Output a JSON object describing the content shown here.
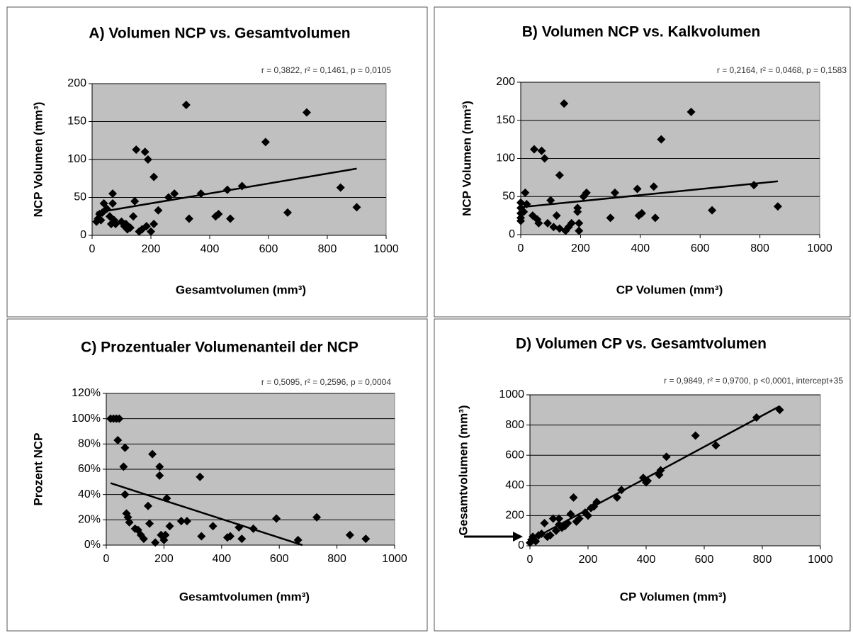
{
  "chart_data": [
    {
      "type": "scatter",
      "title": "A) Volumen NCP vs. Gesamtvolumen",
      "annotation": "r = 0,3822, r² = 0,1461, p = 0,0105",
      "xlabel": "Gesamtvolumen (mm³)",
      "ylabel": "NCP Volumen (mm³)",
      "color": "#000000",
      "grid": true,
      "xlim": [
        0,
        1000
      ],
      "ylim": [
        0,
        200
      ],
      "xticks": [
        0,
        200,
        400,
        600,
        800,
        1000
      ],
      "yticks": [
        0,
        50,
        100,
        150,
        200
      ],
      "x": [
        15,
        20,
        25,
        30,
        35,
        40,
        50,
        60,
        65,
        70,
        70,
        75,
        80,
        100,
        110,
        115,
        120,
        130,
        140,
        145,
        150,
        160,
        170,
        180,
        185,
        190,
        200,
        210,
        210,
        225,
        260,
        280,
        320,
        330,
        370,
        420,
        430,
        460,
        470,
        510,
        590,
        665,
        730,
        845,
        900
      ],
      "y": [
        18,
        22,
        28,
        20,
        30,
        42,
        35,
        25,
        15,
        42,
        55,
        20,
        15,
        18,
        12,
        15,
        8,
        10,
        25,
        45,
        113,
        5,
        8,
        110,
        12,
        100,
        5,
        15,
        77,
        33,
        50,
        55,
        172,
        22,
        55,
        25,
        28,
        60,
        22,
        65,
        123,
        30,
        162,
        63,
        37
      ],
      "trendline": {
        "x": [
          15,
          900
        ],
        "y": [
          30,
          88
        ]
      }
    },
    {
      "type": "scatter",
      "title": "B) Volumen NCP vs. Kalkvolumen",
      "annotation": "r = 0,2164, r² = 0,0468, p = 0,1583",
      "xlabel": "CP Volumen (mm³)",
      "ylabel": "NCP Volumen (mm³)",
      "color": "#000000",
      "grid": true,
      "xlim": [
        0,
        1000
      ],
      "ylim": [
        0,
        200
      ],
      "xticks": [
        0,
        200,
        400,
        600,
        800,
        1000
      ],
      "yticks": [
        0,
        50,
        100,
        150,
        200
      ],
      "x": [
        0,
        0,
        0,
        0,
        0,
        10,
        15,
        20,
        40,
        45,
        55,
        60,
        70,
        80,
        90,
        100,
        110,
        120,
        130,
        130,
        145,
        150,
        160,
        170,
        190,
        190,
        195,
        195,
        210,
        220,
        300,
        315,
        390,
        395,
        405,
        445,
        450,
        470,
        570,
        640,
        780,
        860
      ],
      "y": [
        18,
        22,
        28,
        35,
        42,
        30,
        55,
        40,
        25,
        112,
        20,
        15,
        110,
        100,
        15,
        45,
        10,
        25,
        8,
        78,
        172,
        5,
        10,
        15,
        35,
        30,
        15,
        5,
        50,
        55,
        22,
        55,
        60,
        25,
        28,
        63,
        22,
        125,
        161,
        32,
        65,
        37
      ],
      "trendline": {
        "x": [
          0,
          860
        ],
        "y": [
          36,
          70
        ]
      }
    },
    {
      "type": "scatter",
      "title": "C) Prozentualer Volumenanteil der NCP",
      "annotation": "r = 0,5095, r² = 0,2596, p = 0,0004",
      "xlabel": "Gesamtvolumen (mm³)",
      "ylabel": "Prozent NCP",
      "color": "#000000",
      "grid": true,
      "xlim": [
        0,
        1000
      ],
      "ylim": [
        0,
        120
      ],
      "xticks": [
        0,
        200,
        400,
        600,
        800,
        1000
      ],
      "yticks": [
        {
          "value": 0,
          "label": "0%"
        },
        {
          "value": 20,
          "label": "20%"
        },
        {
          "value": 40,
          "label": "40%"
        },
        {
          "value": 60,
          "label": "60%"
        },
        {
          "value": 80,
          "label": "80%"
        },
        {
          "value": 100,
          "label": "100%"
        },
        {
          "value": 120,
          "label": "120%"
        }
      ],
      "x": [
        15,
        25,
        35,
        40,
        45,
        60,
        65,
        65,
        70,
        75,
        80,
        100,
        110,
        120,
        130,
        145,
        150,
        160,
        170,
        185,
        185,
        190,
        200,
        205,
        210,
        220,
        260,
        280,
        325,
        330,
        370,
        420,
        430,
        460,
        470,
        510,
        590,
        665,
        730,
        845,
        900
      ],
      "y": [
        100,
        100,
        100,
        83,
        100,
        62,
        77,
        40,
        25,
        22,
        18,
        13,
        12,
        8,
        5,
        31,
        17,
        72,
        2,
        62,
        55,
        8,
        4,
        8,
        37,
        15,
        19,
        19,
        54,
        7,
        15,
        6,
        7,
        14,
        5,
        13,
        21,
        4,
        22,
        8,
        5
      ],
      "trendline": {
        "x": [
          15,
          680
        ],
        "y": [
          49,
          0
        ]
      }
    },
    {
      "type": "scatter",
      "title": "D) Volumen CP vs. Gesamtvolumen",
      "annotation": "r = 0,9849,  r² = 0,9700, p <0,0001, intercept+35",
      "xlabel": "CP Volumen (mm³)",
      "ylabel": "Gesamtvolumen (mm³)",
      "color": "#000000",
      "grid": true,
      "xlim": [
        0,
        1000
      ],
      "ylim": [
        0,
        1000
      ],
      "xticks": [
        0,
        200,
        400,
        600,
        800,
        1000
      ],
      "yticks": [
        0,
        200,
        400,
        600,
        800,
        1000
      ],
      "x": [
        0,
        5,
        10,
        20,
        30,
        40,
        50,
        60,
        70,
        80,
        90,
        100,
        100,
        110,
        120,
        130,
        140,
        150,
        160,
        170,
        190,
        200,
        210,
        220,
        230,
        300,
        315,
        390,
        400,
        405,
        445,
        450,
        470,
        570,
        640,
        780,
        860
      ],
      "y": [
        20,
        40,
        60,
        30,
        70,
        80,
        150,
        60,
        70,
        180,
        100,
        180,
        140,
        120,
        130,
        150,
        210,
        320,
        160,
        180,
        220,
        200,
        250,
        260,
        290,
        320,
        370,
        450,
        420,
        430,
        470,
        500,
        590,
        730,
        665,
        850,
        900
      ],
      "trendline": {
        "x": [
          0,
          860
        ],
        "y": [
          35,
          925
        ]
      }
    }
  ]
}
